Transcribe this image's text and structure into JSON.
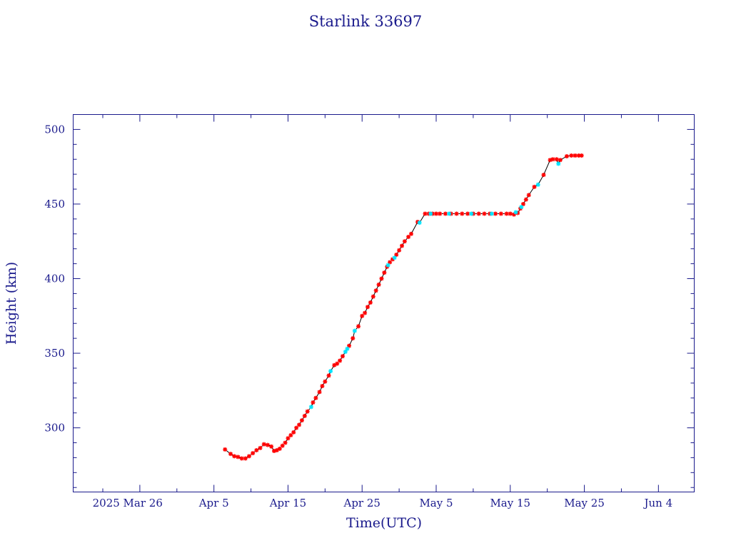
{
  "chart_data": {
    "type": "scatter",
    "title": "Starlink 33697",
    "xlabel": "Time(UTC)",
    "ylabel": "Height (km)",
    "xlim": [
      "2025-03-17T00:00",
      "2025-06-08T20:00"
    ],
    "ylim": [
      257,
      510
    ],
    "x_tick_labels": [
      {
        "date": "2025-03-26",
        "label": "2025 Mar 26"
      },
      {
        "date": "2025-04-05",
        "label": "Apr  5"
      },
      {
        "date": "2025-04-15",
        "label": "Apr 15"
      },
      {
        "date": "2025-04-25",
        "label": "Apr 25"
      },
      {
        "date": "2025-05-05",
        "label": "May  5"
      },
      {
        "date": "2025-05-15",
        "label": "May 15"
      },
      {
        "date": "2025-05-25",
        "label": "May 25"
      },
      {
        "date": "2025-06-04",
        "label": "Jun  4"
      }
    ],
    "y_ticks": [
      300,
      350,
      400,
      450,
      500
    ],
    "grid": false,
    "colors": {
      "axes": "#1a1a8c",
      "line": "#000000",
      "primary_marker": "#ff0000",
      "secondary_marker": "#00e5ff"
    },
    "series": [
      {
        "marker": "red-star",
        "color": "#ff0000",
        "points": [
          [
            "2025-04-06T12:00",
            285.5
          ],
          [
            "2025-04-07T06:00",
            282.5
          ],
          [
            "2025-04-07T18:00",
            281
          ],
          [
            "2025-04-08T06:00",
            280.5
          ],
          [
            "2025-04-08T18:00",
            279.5
          ],
          [
            "2025-04-09T06:00",
            279.5
          ],
          [
            "2025-04-09T18:00",
            281
          ],
          [
            "2025-04-10T06:00",
            283
          ],
          [
            "2025-04-10T18:00",
            285
          ],
          [
            "2025-04-11T06:00",
            286.5
          ],
          [
            "2025-04-11T18:00",
            289
          ],
          [
            "2025-04-12T06:00",
            288.5
          ],
          [
            "2025-04-12T18:00",
            287.5
          ],
          [
            "2025-04-13T03:00",
            284.5
          ],
          [
            "2025-04-13T12:00",
            285
          ],
          [
            "2025-04-13T21:00",
            286
          ],
          [
            "2025-04-14T06:00",
            288
          ],
          [
            "2025-04-14T15:00",
            290
          ],
          [
            "2025-04-15T00:00",
            293
          ],
          [
            "2025-04-15T09:00",
            295
          ],
          [
            "2025-04-15T18:00",
            297
          ],
          [
            "2025-04-16T03:00",
            300
          ],
          [
            "2025-04-16T12:00",
            302
          ],
          [
            "2025-04-16T21:00",
            305
          ],
          [
            "2025-04-17T06:00",
            308
          ],
          [
            "2025-04-17T15:00",
            311
          ],
          [
            "2025-04-18T09:00",
            317
          ],
          [
            "2025-04-18T18:00",
            320
          ],
          [
            "2025-04-19T06:00",
            324
          ],
          [
            "2025-04-19T15:00",
            328
          ],
          [
            "2025-04-20T00:00",
            331
          ],
          [
            "2025-04-20T12:00",
            335
          ],
          [
            "2025-04-21T06:00",
            342
          ],
          [
            "2025-04-21T15:00",
            343
          ],
          [
            "2025-04-22T00:00",
            345
          ],
          [
            "2025-04-22T09:00",
            348
          ],
          [
            "2025-04-23T06:00",
            355
          ],
          [
            "2025-04-23T18:00",
            360
          ],
          [
            "2025-04-24T12:00",
            368
          ],
          [
            "2025-04-25T00:00",
            375
          ],
          [
            "2025-04-25T09:00",
            377
          ],
          [
            "2025-04-25T18:00",
            381
          ],
          [
            "2025-04-26T03:00",
            384
          ],
          [
            "2025-04-26T12:00",
            388
          ],
          [
            "2025-04-26T21:00",
            392
          ],
          [
            "2025-04-27T06:00",
            396
          ],
          [
            "2025-04-27T15:00",
            400
          ],
          [
            "2025-04-28T00:00",
            404
          ],
          [
            "2025-04-28T09:00",
            408
          ],
          [
            "2025-04-28T18:00",
            411
          ],
          [
            "2025-04-29T03:00",
            413
          ],
          [
            "2025-04-29T15:00",
            416
          ],
          [
            "2025-04-30T00:00",
            419
          ],
          [
            "2025-04-30T09:00",
            422
          ],
          [
            "2025-04-30T18:00",
            425
          ],
          [
            "2025-05-01T06:00",
            428
          ],
          [
            "2025-05-01T15:00",
            430
          ],
          [
            "2025-05-02T12:00",
            438
          ],
          [
            "2025-05-03T12:00",
            443.5
          ],
          [
            "2025-05-04T00:00",
            443.5
          ],
          [
            "2025-05-04T12:00",
            443.5
          ],
          [
            "2025-05-05T00:00",
            443.5
          ],
          [
            "2025-05-05T12:00",
            443.5
          ],
          [
            "2025-05-06T06:00",
            443.5
          ],
          [
            "2025-05-07T00:00",
            443.5
          ],
          [
            "2025-05-07T18:00",
            443.5
          ],
          [
            "2025-05-08T12:00",
            443.5
          ],
          [
            "2025-05-09T06:00",
            443.5
          ],
          [
            "2025-05-10T00:00",
            443.5
          ],
          [
            "2025-05-10T18:00",
            443.5
          ],
          [
            "2025-05-11T12:00",
            443.5
          ],
          [
            "2025-05-12T06:00",
            443.5
          ],
          [
            "2025-05-13T00:00",
            443.5
          ],
          [
            "2025-05-13T18:00",
            443.5
          ],
          [
            "2025-05-14T12:00",
            443.5
          ],
          [
            "2025-05-15T00:00",
            443.5
          ],
          [
            "2025-05-15T12:00",
            443
          ],
          [
            "2025-05-16T00:00",
            444
          ],
          [
            "2025-05-16T09:00",
            447
          ],
          [
            "2025-05-16T18:00",
            450
          ],
          [
            "2025-05-17T03:00",
            453
          ],
          [
            "2025-05-17T12:00",
            456
          ],
          [
            "2025-05-18T06:00",
            461.5
          ],
          [
            "2025-05-19T12:00",
            469.5
          ],
          [
            "2025-05-20T09:00",
            479.5
          ],
          [
            "2025-05-20T18:00",
            480
          ],
          [
            "2025-05-21T06:00",
            480
          ],
          [
            "2025-05-21T18:00",
            479.5
          ],
          [
            "2025-05-22T15:00",
            482
          ],
          [
            "2025-05-23T06:00",
            482.5
          ],
          [
            "2025-05-23T18:00",
            482.5
          ],
          [
            "2025-05-24T06:00",
            482.5
          ],
          [
            "2025-05-24T15:00",
            482.5
          ]
        ]
      },
      {
        "marker": "cyan-star",
        "color": "#00e5ff",
        "points": [
          [
            "2025-04-18T03:00",
            314
          ],
          [
            "2025-04-20T18:00",
            338
          ],
          [
            "2025-04-22T18:00",
            351
          ],
          [
            "2025-04-23T00:00",
            353
          ],
          [
            "2025-04-24T00:00",
            365
          ],
          [
            "2025-04-28T12:00",
            409
          ],
          [
            "2025-04-29T09:00",
            414
          ],
          [
            "2025-05-02T18:00",
            437.5
          ],
          [
            "2025-05-04T06:00",
            443.5
          ],
          [
            "2025-05-06T18:00",
            443.5
          ],
          [
            "2025-05-09T18:00",
            443.5
          ],
          [
            "2025-05-12T12:00",
            443.5
          ],
          [
            "2025-05-15T18:00",
            444.5
          ],
          [
            "2025-05-16T12:00",
            448
          ],
          [
            "2025-05-18T18:00",
            463
          ],
          [
            "2025-05-21T12:00",
            477
          ]
        ]
      }
    ]
  }
}
